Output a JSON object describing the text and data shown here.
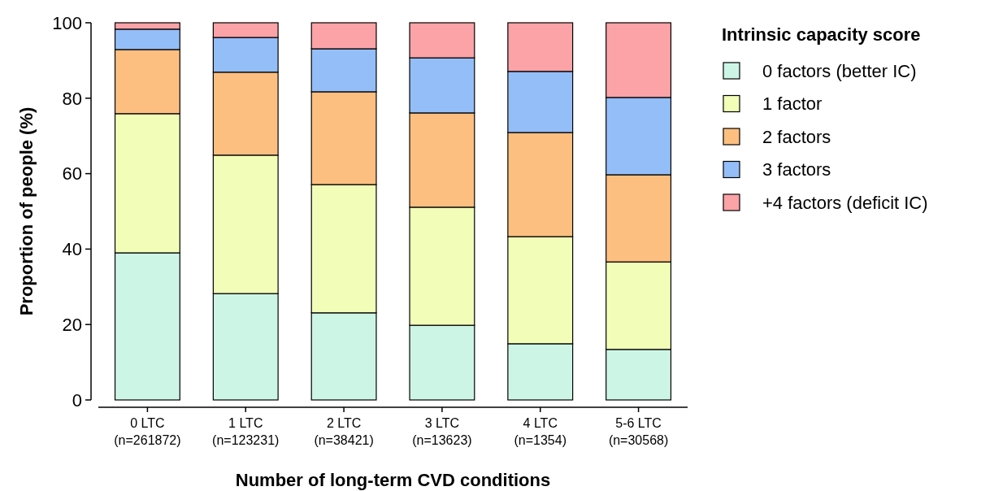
{
  "chart_data": {
    "type": "bar",
    "stacked": true,
    "xlabel": "Number of long-term CVD conditions",
    "ylabel": "Proportion of people (%)",
    "legend_title": "Intrinsic capacity score",
    "legend": "right",
    "ylim": [
      0,
      100
    ],
    "yticks": [
      0,
      20,
      40,
      60,
      80,
      100
    ],
    "categories": [
      "0 LTC\n(n=261872)",
      "1 LTC\n(n=123231)",
      "2 LTC\n(n=38421)",
      "3 LTC\n(n=13623)",
      "4 LTC\n(n=1354)",
      "5-6 LTC\n(n=30568)"
    ],
    "series": [
      {
        "name": "0 factors (better IC)",
        "color": "#cdf5e6",
        "values": [
          39.0,
          28.2,
          23.1,
          19.8,
          14.9,
          13.4
        ]
      },
      {
        "name": "1 factor",
        "color": "#f2fdb8",
        "values": [
          36.9,
          36.7,
          34.0,
          31.3,
          28.4,
          23.2
        ]
      },
      {
        "name": "2 factors",
        "color": "#fdbf80",
        "values": [
          17.0,
          22.0,
          24.6,
          25.0,
          27.6,
          23.1
        ]
      },
      {
        "name": "3 factors",
        "color": "#94bef8",
        "values": [
          5.4,
          9.2,
          11.4,
          14.6,
          16.2,
          20.5
        ]
      },
      {
        "name": "+4 factors (deficit IC)",
        "color": "#fca3a8",
        "values": [
          1.7,
          3.9,
          6.9,
          9.3,
          12.9,
          19.8
        ]
      }
    ]
  }
}
